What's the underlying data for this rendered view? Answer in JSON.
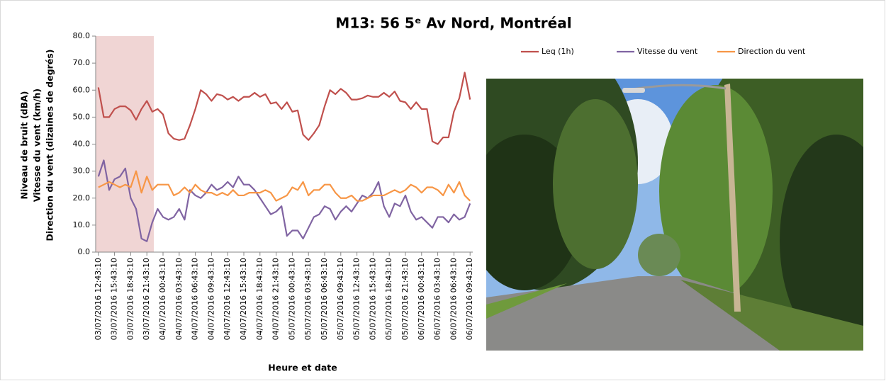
{
  "chart_data": {
    "type": "line",
    "title": "M13: 56 5ᵉ Av Nord, Montréal",
    "x_label": "Heure et date",
    "y_label": [
      "Niveau de bruit (dBA)",
      "Vitesse du vent (km/h)",
      "Direction du vent (dizaines de degrés)"
    ],
    "categories": [
      "03/07/2016 12:43:10",
      null,
      null,
      "03/07/2016 15:43:10",
      null,
      null,
      "03/07/2016 18:43:10",
      null,
      null,
      "03/07/2016 21:43:10",
      null,
      null,
      "04/07/2016 00:43:10",
      null,
      null,
      "04/07/2016 03:43:10",
      null,
      null,
      "04/07/2016 06:43:10",
      null,
      null,
      "04/07/2016 09:43:10",
      null,
      null,
      "04/07/2016 12:43:10",
      null,
      null,
      "04/07/2016 15:43:10",
      null,
      null,
      "04/07/2016 18:43:10",
      null,
      null,
      "04/07/2016 21:43:10",
      null,
      null,
      "05/07/2016 00:43:10",
      null,
      null,
      "05/07/2016 03:43:10",
      null,
      null,
      "05/07/2016 06:43:10",
      null,
      null,
      "05/07/2016 09:43:10",
      null,
      null,
      "05/07/2016 12:43:10",
      null,
      null,
      "05/07/2016 15:43:10",
      null,
      null,
      "05/07/2016 18:43:10",
      null,
      null,
      "05/07/2016 21:43:10",
      null,
      null,
      "06/07/2016 00:43:10",
      null,
      null,
      "06/07/2016 03:43:10",
      null,
      null,
      "06/07/2016 06:43:10",
      null,
      null,
      "06/07/2016 09:43:10"
    ],
    "series": [
      {
        "name": "Leq (1h)",
        "color": "#c0504d",
        "values": [
          61,
          50,
          50,
          53,
          54,
          54,
          52.5,
          49,
          53,
          56,
          52,
          53,
          51,
          44,
          42,
          41.5,
          42,
          47,
          53,
          60,
          58.5,
          56,
          58.5,
          58,
          56.5,
          57.5,
          56,
          57.5,
          57.5,
          59,
          57.5,
          58.5,
          55,
          55.5,
          53,
          55.5,
          52,
          52.5,
          43.5,
          41.5,
          44,
          47,
          54,
          60,
          58.5,
          60.5,
          59,
          56.5,
          56.5,
          57,
          58,
          57.5,
          57.5,
          59,
          57.5,
          59.5,
          56,
          55.5,
          53,
          55.5,
          53,
          53,
          41,
          40,
          42.5,
          42.5,
          52,
          57,
          66.5,
          56.5
        ]
      },
      {
        "name": "Vitesse du vent",
        "color": "#8064a2",
        "values": [
          28,
          34,
          23,
          27,
          28,
          31,
          20,
          16,
          5,
          4,
          11,
          16,
          13,
          12,
          13,
          16,
          12,
          23,
          21,
          20,
          22,
          25,
          23,
          24,
          26,
          24,
          28,
          25,
          25,
          23,
          20,
          17,
          14,
          15,
          17,
          6,
          8,
          8,
          5,
          9,
          13,
          14,
          17,
          16,
          12,
          15,
          17,
          15,
          18,
          21,
          20,
          22,
          26,
          17,
          13,
          18,
          17,
          21,
          15,
          12,
          13,
          11,
          9,
          13,
          13,
          11,
          14,
          12,
          13,
          18
        ]
      },
      {
        "name": "Direction du vent",
        "color": "#f79646",
        "values": [
          24,
          25,
          26,
          25,
          24,
          25,
          24,
          30,
          22,
          28,
          23,
          25,
          25,
          25,
          21,
          22,
          24,
          22,
          25,
          23,
          22,
          22,
          21,
          22,
          21,
          23,
          21,
          21,
          22,
          22,
          22,
          23,
          22,
          19,
          20,
          21,
          24,
          23,
          26,
          21,
          23,
          23,
          25,
          25,
          22,
          20,
          20,
          21,
          19,
          19,
          20,
          21,
          21,
          21,
          22,
          23,
          22,
          23,
          25,
          24,
          22,
          24,
          24,
          23,
          21,
          25,
          22,
          26,
          21,
          19
        ]
      }
    ],
    "ylim": [
      0,
      80
    ],
    "yticks": [
      {
        "value": 0,
        "label": "0.0"
      },
      {
        "value": 10,
        "label": "10.0"
      },
      {
        "value": 20,
        "label": "20.0"
      },
      {
        "value": 30,
        "label": "30.0"
      },
      {
        "value": 40,
        "label": "40.0"
      },
      {
        "value": 50,
        "label": "50.0"
      },
      {
        "value": 60,
        "label": "60.0"
      },
      {
        "value": 70,
        "label": "70.0"
      },
      {
        "value": 80,
        "label": "80.0"
      }
    ],
    "grid": false
  }
}
